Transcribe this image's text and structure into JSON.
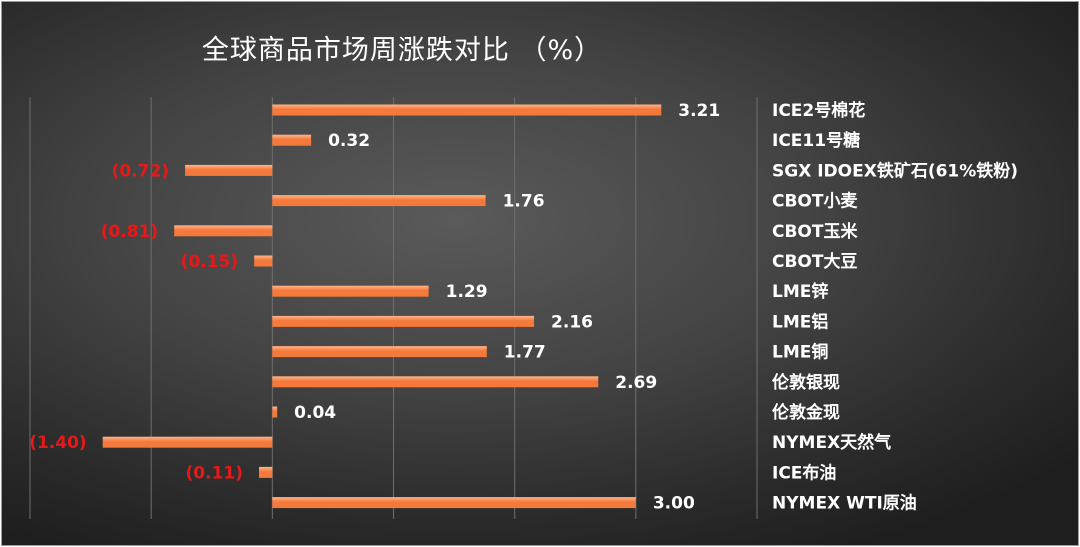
{
  "title": "全球商品市场周涨跌对比  （%）",
  "colors": {
    "bar": "#f4793a",
    "bar_highlight": "#ffb48a",
    "positive_label": "#ffffff",
    "negative_label": "#e81818",
    "gridline": "#6e6e6e"
  },
  "chart_data": {
    "type": "bar",
    "orientation": "horizontal",
    "title": "全球商品市场周涨跌对比  （%）",
    "categories": [
      "ICE2号棉花",
      "ICE11号糖",
      "SGX IDOEX铁矿石(61%铁粉)",
      "CBOT小麦",
      "CBOT玉米",
      "CBOT大豆",
      "LME锌",
      "LME铝",
      "LME铜",
      "伦敦银现",
      "伦敦金现",
      "NYMEX天然气",
      "ICE布油",
      "NYMEX WTI原油"
    ],
    "values": [
      3.21,
      0.32,
      -0.72,
      1.76,
      -0.81,
      -0.15,
      1.29,
      2.16,
      1.77,
      2.69,
      0.04,
      -1.4,
      -0.11,
      3.0
    ],
    "value_labels": [
      "3.21",
      "0.32",
      "(0.72)",
      "1.76",
      "(0.81)",
      "(0.15)",
      "1.29",
      "2.16",
      "1.77",
      "2.69",
      "0.04",
      "(1.40)",
      "(0.11)",
      "3.00"
    ],
    "xlim": [
      -2,
      4
    ],
    "grid": true,
    "axis_tick_labels_shown": false
  }
}
